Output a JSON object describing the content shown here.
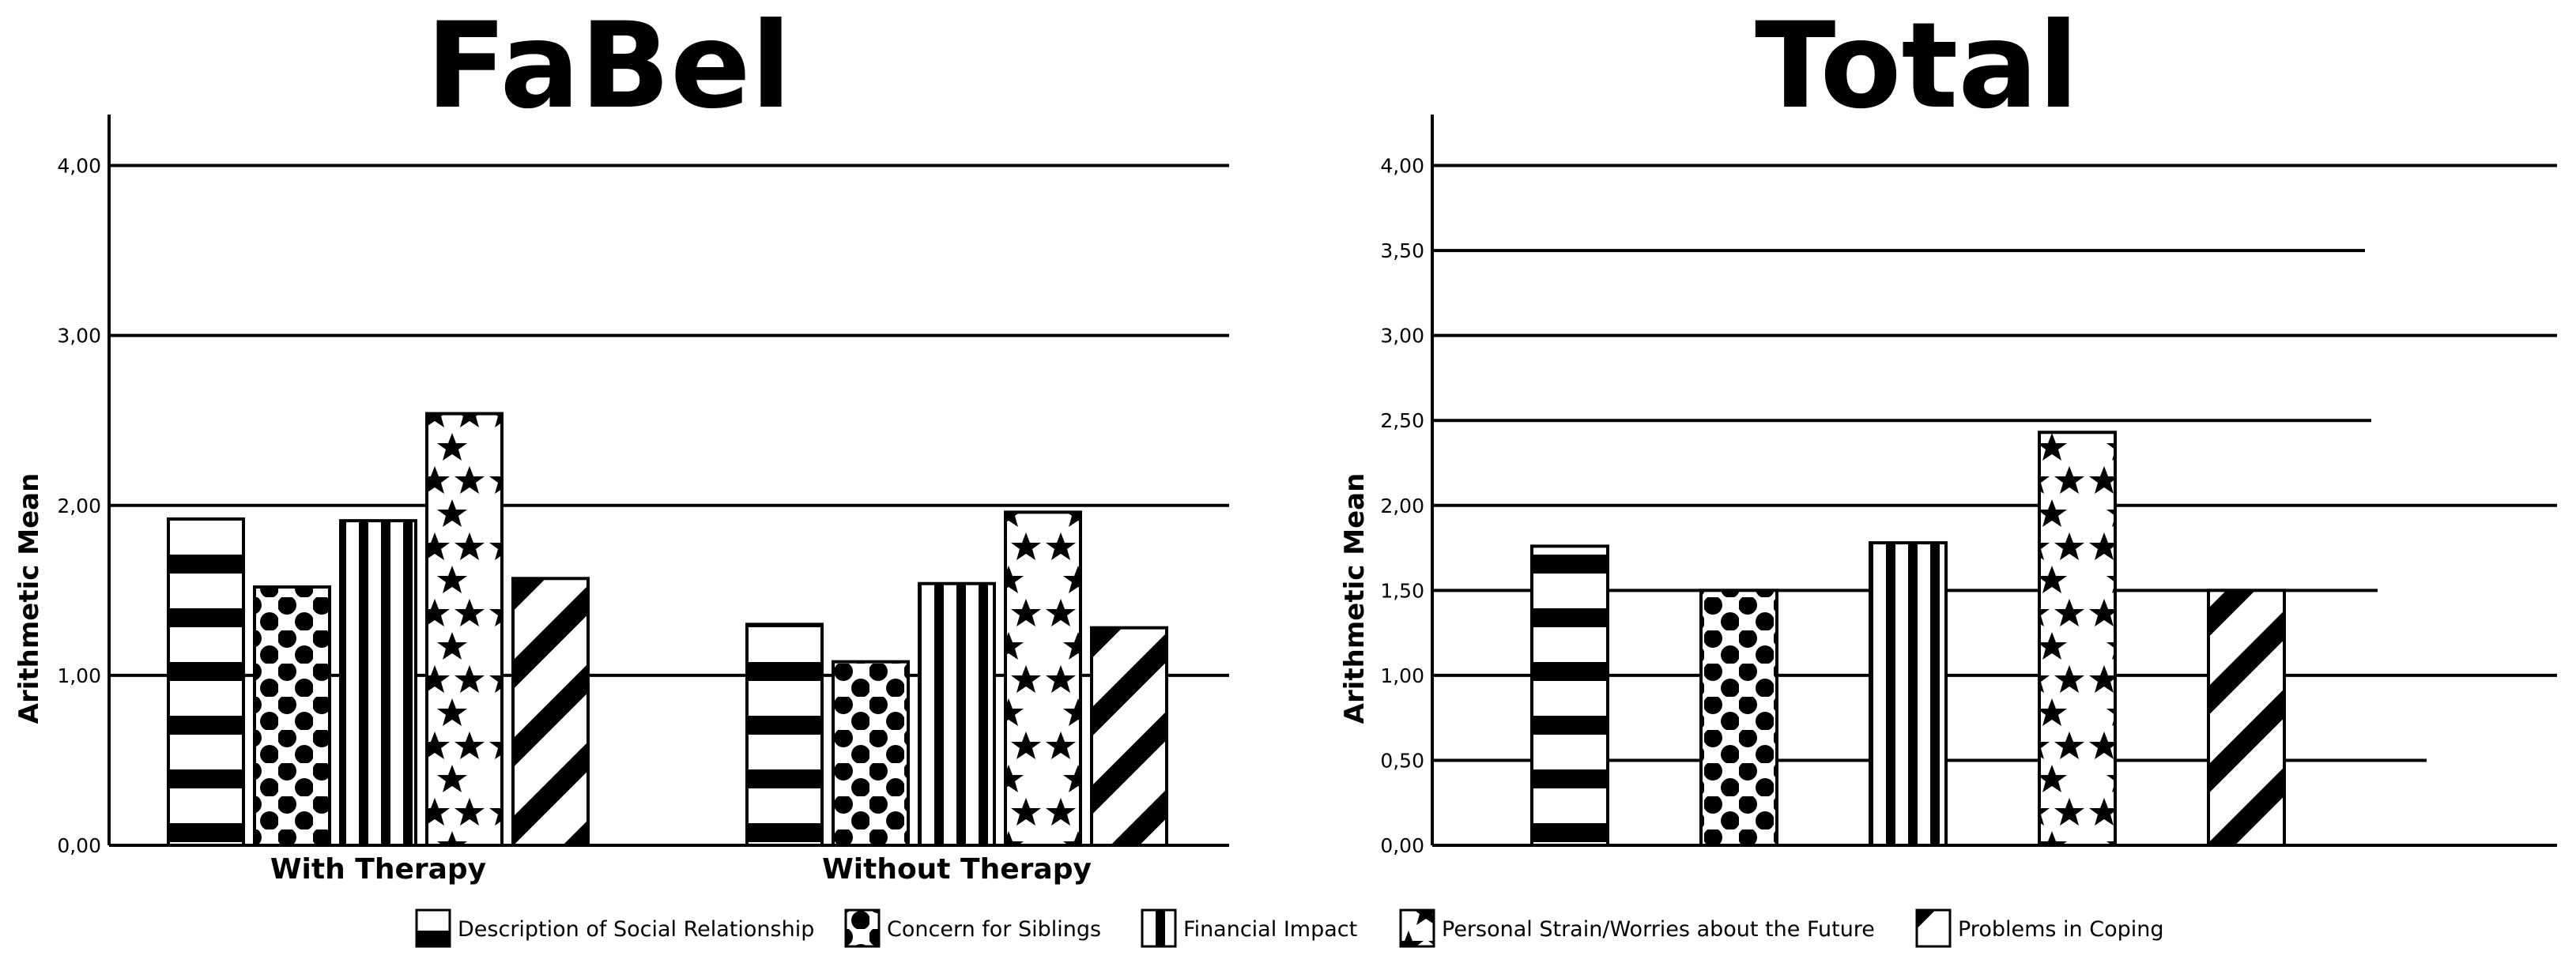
{
  "chart_data": [
    {
      "type": "bar",
      "title": "FaBel",
      "ylabel": "Arithmetic Mean",
      "xlabel": "",
      "ylim": [
        0,
        4.3
      ],
      "ticks": [
        "0,00",
        "1,00",
        "2,00",
        "3,00",
        "4,00"
      ],
      "tick_values": [
        0,
        1,
        2,
        3,
        4
      ],
      "grid": true,
      "categories": [
        "With Therapy",
        "Without Therapy"
      ],
      "series": [
        {
          "name": "Description of Social Relationship",
          "values": [
            1.92,
            1.3
          ]
        },
        {
          "name": "Concern for Siblings",
          "values": [
            1.52,
            1.08
          ]
        },
        {
          "name": "Financial Impact",
          "values": [
            1.91,
            1.54
          ]
        },
        {
          "name": "Personal Strain/Worries about the Future",
          "values": [
            2.54,
            1.96
          ]
        },
        {
          "name": "Problems in Coping",
          "values": [
            1.57,
            1.28
          ]
        }
      ]
    },
    {
      "type": "bar",
      "title": "Total",
      "ylabel": "Arithmetic Mean",
      "xlabel": "",
      "ylim": [
        0,
        4.3
      ],
      "ticks": [
        "0,00",
        "0,50",
        "1,00",
        "1,50",
        "2,00",
        "2,50",
        "3,00",
        "3,50",
        "4,00"
      ],
      "tick_values": [
        0,
        0.5,
        1,
        1.5,
        2,
        2.5,
        3,
        3.5,
        4
      ],
      "grid": true,
      "categories": [
        ""
      ],
      "series": [
        {
          "name": "Description of Social Relationship",
          "values": [
            1.76
          ]
        },
        {
          "name": "Concern for Siblings",
          "values": [
            1.5
          ]
        },
        {
          "name": "Financial Impact",
          "values": [
            1.78
          ]
        },
        {
          "name": "Personal Strain/Worries about the Future",
          "values": [
            2.43
          ]
        },
        {
          "name": "Problems in Coping",
          "values": [
            1.5
          ]
        }
      ]
    }
  ],
  "legend": {
    "placement": "bottom",
    "items": [
      {
        "label": "Description of Social Relationship",
        "pattern": "stripes-horizontal-icon"
      },
      {
        "label": "Concern for Siblings",
        "pattern": "dots-icon"
      },
      {
        "label": "Financial Impact",
        "pattern": "stripes-vertical-icon"
      },
      {
        "label": "Personal Strain/Worries about the Future",
        "pattern": "stars-icon"
      },
      {
        "label": "Problems in Coping",
        "pattern": "diagonal-stripes-icon"
      }
    ]
  }
}
